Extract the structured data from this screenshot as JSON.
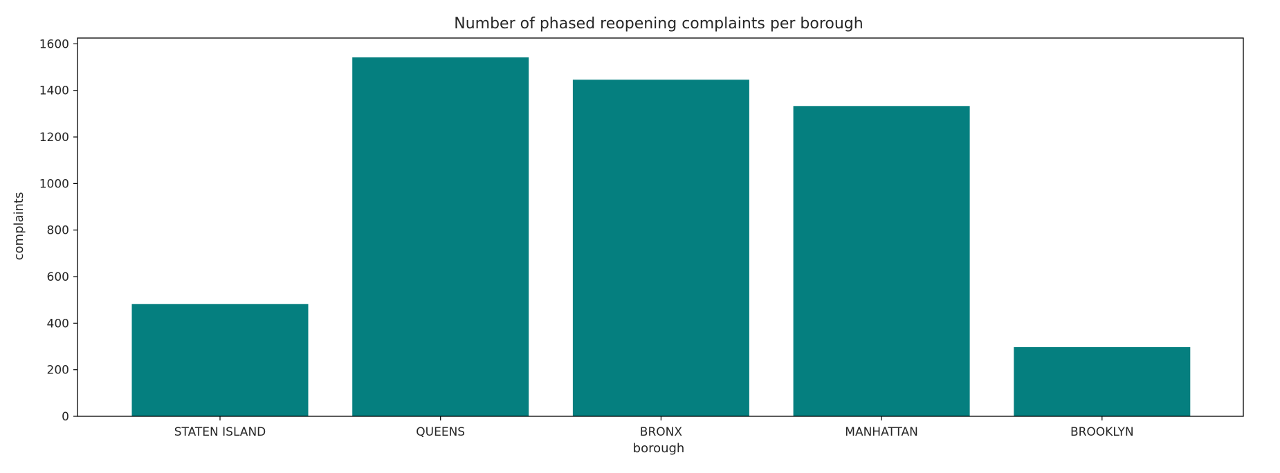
{
  "chart_data": {
    "type": "bar",
    "title": "Number of phased reopening complaints per borough",
    "xlabel": "borough",
    "ylabel": "complaints",
    "categories": [
      "STATEN ISLAND",
      "QUEENS",
      "BRONX",
      "MANHATTAN",
      "BROOKLYN"
    ],
    "values": [
      482,
      1542,
      1446,
      1333,
      297
    ],
    "ylim": [
      0,
      1625
    ],
    "yticks": [
      0,
      200,
      400,
      600,
      800,
      1000,
      1200,
      1400,
      1600
    ],
    "grid": false,
    "bar_color": "#057f7f"
  }
}
